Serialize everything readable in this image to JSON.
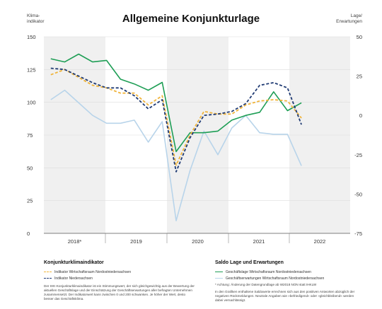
{
  "chart_data": {
    "type": "line",
    "title": "Allgemeine Konjunkturlage",
    "left_axis": {
      "label_line1": "Klima-",
      "label_line2": "indikator",
      "ylim": [
        0,
        150
      ],
      "ticks": [
        0,
        25,
        50,
        75,
        100,
        125,
        150
      ]
    },
    "right_axis": {
      "label_line1": "Lage/",
      "label_line2": "Erwartungen",
      "ylim": [
        -75,
        50
      ],
      "ticks": [
        -75,
        -50,
        -25,
        0,
        25,
        50
      ]
    },
    "years": [
      "2018*",
      "2019",
      "2020",
      "2021",
      "2022"
    ],
    "x_points": 22,
    "series": [
      {
        "name": "Indikator Wirtschaftsraum Nordostniedersachsen",
        "axis": "left",
        "color": "#f0b43a",
        "style": "dashed",
        "values": [
          121,
          125,
          119,
          113,
          111,
          107,
          107,
          98,
          105,
          52,
          75,
          93,
          91,
          91,
          98,
          101,
          102,
          101,
          88
        ]
      },
      {
        "name": "Indikator Niedersachsen",
        "axis": "left",
        "color": "#1f3a73",
        "style": "dashed",
        "values": [
          126,
          125,
          120,
          115,
          111,
          111,
          105,
          95,
          102,
          47,
          73,
          90,
          91,
          93,
          99,
          113,
          115,
          111,
          83
        ]
      },
      {
        "name": "Geschäftslage Wirtschaftsraum Nordostniedersachsen",
        "axis": "right",
        "color": "#1e9e55",
        "style": "solid",
        "values": [
          36,
          34,
          39,
          34,
          35,
          23,
          20,
          16,
          21,
          -23,
          -11,
          -11,
          -10,
          -3,
          0,
          2,
          15,
          3,
          8
        ]
      },
      {
        "name": "Geschäftserwartungen Wirtschaftsraum Nordostniedersachsen",
        "axis": "right",
        "color": "#b8d4ea",
        "style": "solid",
        "values": [
          10,
          16,
          8,
          0,
          -5,
          -5,
          -3,
          -17,
          -4,
          -67,
          -35,
          -10,
          -25,
          -8,
          0,
          -11,
          -12,
          -12,
          -32
        ]
      }
    ],
    "x_index_of_values": [
      0,
      1,
      2,
      3,
      4,
      5,
      6,
      7,
      8,
      9,
      10,
      11,
      12,
      13,
      14,
      15,
      16,
      17,
      18
    ],
    "shaded_years": [
      "2018*",
      "2020",
      "2022"
    ]
  },
  "legend_left": {
    "title": "Konjunkturklimaindikator",
    "items": [
      "Indikator Wirtschaftsraum Nordostniedersachsen",
      "Indikator Niedersachsen"
    ],
    "note": "Der IHK-Konjunkturklimaindikator ist ein Stimmungswert, der sich gleichgewichtig aus der Bewertung der aktuellen Geschäftslage und der Einschätzung der Geschäftserwartungen aller befragten Unternehmen zusammensetzt. Der Indikatorwert kann zwischen 0 und 200 schwanken. Je höher der Wert, desto besser das Geschäftsklima."
  },
  "legend_right": {
    "title": "Saldo Lage und Erwartungen",
    "items": [
      "Geschäftslage Wirtschaftsraum Nordostniedersachsen",
      "Geschäftserwartungen Wirtschaftsraum Nordostniedersachsen"
    ],
    "footnote": "* Achtung: Änderung der Datengrundlage ab W2018 NON statt IHKLW",
    "note": "In den Grafiken enthaltene Saldowerte errechnen sich aus den positiven Antworten abzüglich der negativen Rückmeldungen. Neutrale Angaben wie »befriedigend« oder »gleichbleibend« werden dabei vernachlässigt."
  }
}
